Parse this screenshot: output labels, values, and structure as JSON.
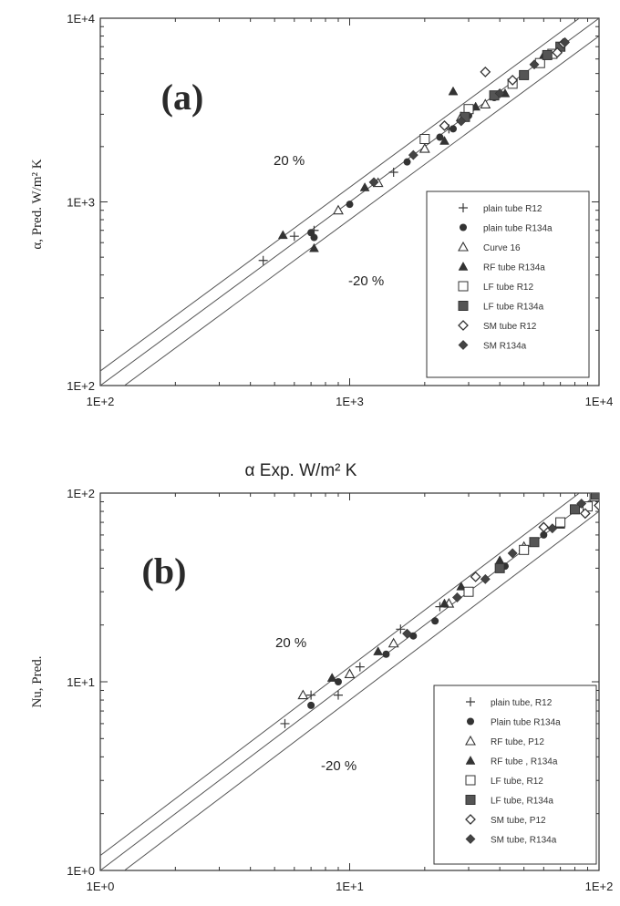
{
  "chart_data": [
    {
      "type": "scatter",
      "panel_label": "(a)",
      "ylabel": "α, Pred. W/m² K",
      "xlabel": "α Exp. W/m² K",
      "xscale": "log",
      "yscale": "log",
      "xlim": [
        100,
        10000
      ],
      "ylim": [
        100,
        10000
      ],
      "xticks": [
        "1E+2",
        "1E+3",
        "1E+4"
      ],
      "yticks": [
        "1E+2",
        "1E+3",
        "1E+4"
      ],
      "grid": false,
      "legend_position": "lower-right",
      "reference_lines": [
        {
          "label": "20 %",
          "factor": 1.2
        },
        {
          "label": "",
          "factor": 1.0
        },
        {
          "label": "-20 %",
          "factor": 0.8
        }
      ],
      "series": [
        {
          "name": "plain tube R12",
          "marker": "plus",
          "points": [
            [
              450,
              480
            ],
            [
              600,
              650
            ],
            [
              720,
              700
            ],
            [
              1500,
              1450
            ],
            [
              2500,
              2500
            ]
          ]
        },
        {
          "name": "plain tube R134a",
          "marker": "circle",
          "points": [
            [
              700,
              680
            ],
            [
              720,
              640
            ],
            [
              1000,
              970
            ],
            [
              1700,
              1650
            ],
            [
              2300,
              2250
            ],
            [
              2600,
              2500
            ],
            [
              3000,
              2950
            ],
            [
              3800,
              3700
            ]
          ]
        },
        {
          "name": "Curve 16",
          "marker": "triangle-open",
          "points": [
            [
              900,
              900
            ],
            [
              1300,
              1270
            ],
            [
              2000,
              1950
            ],
            [
              2800,
              2900
            ],
            [
              3500,
              3400
            ]
          ]
        },
        {
          "name": "RF tube R134a",
          "marker": "triangle",
          "points": [
            [
              540,
              660
            ],
            [
              720,
              560
            ],
            [
              1150,
              1200
            ],
            [
              2400,
              2150
            ],
            [
              2600,
              4000
            ],
            [
              3200,
              3300
            ],
            [
              4200,
              3900
            ],
            [
              6000,
              6300
            ]
          ]
        },
        {
          "name": "LF tube R12",
          "marker": "square-open",
          "points": [
            [
              2000,
              2200
            ],
            [
              3000,
              3200
            ],
            [
              4500,
              4400
            ],
            [
              5800,
              5700
            ],
            [
              6500,
              6400
            ]
          ]
        },
        {
          "name": "LF tube R134a",
          "marker": "square",
          "points": [
            [
              2900,
              2900
            ],
            [
              3800,
              3800
            ],
            [
              5000,
              4900
            ],
            [
              6200,
              6300
            ],
            [
              7000,
              7000
            ]
          ]
        },
        {
          "name": "SM tube R12",
          "marker": "diamond-open",
          "points": [
            [
              2400,
              2600
            ],
            [
              3500,
              5100
            ],
            [
              4500,
              4600
            ],
            [
              6800,
              6500
            ],
            [
              7200,
              7300
            ]
          ]
        },
        {
          "name": "SM R134a",
          "marker": "diamond",
          "points": [
            [
              1250,
              1280
            ],
            [
              1800,
              1800
            ],
            [
              2800,
              2750
            ],
            [
              4000,
              3900
            ],
            [
              5500,
              5600
            ],
            [
              7300,
              7400
            ]
          ]
        }
      ]
    },
    {
      "type": "scatter",
      "panel_label": "(b)",
      "ylabel": "Nu, Pred.",
      "xlabel": "",
      "xscale": "log",
      "yscale": "log",
      "xlim": [
        1,
        100
      ],
      "ylim": [
        1,
        100
      ],
      "xticks": [
        "1E+0",
        "1E+1",
        "1E+2"
      ],
      "yticks": [
        "1E+0",
        "1E+1",
        "1E+2"
      ],
      "grid": false,
      "legend_position": "lower-right",
      "reference_lines": [
        {
          "label": "20 %",
          "factor": 1.2
        },
        {
          "label": "",
          "factor": 1.0
        },
        {
          "label": "-20 %",
          "factor": 0.8
        }
      ],
      "series": [
        {
          "name": "plain tube, R12",
          "marker": "plus",
          "points": [
            [
              5.5,
              6
            ],
            [
              7,
              8.5
            ],
            [
              9,
              8.5
            ],
            [
              11,
              12
            ],
            [
              16,
              19
            ],
            [
              23,
              25
            ],
            [
              27,
              28
            ]
          ]
        },
        {
          "name": "Plain tube R134a",
          "marker": "circle",
          "points": [
            [
              7,
              7.5
            ],
            [
              9,
              10
            ],
            [
              14,
              14
            ],
            [
              18,
              17.5
            ],
            [
              22,
              21
            ],
            [
              30,
              30
            ],
            [
              42,
              41
            ],
            [
              60,
              60
            ]
          ]
        },
        {
          "name": "RF tube, P12",
          "marker": "triangle-open",
          "points": [
            [
              6.5,
              8.5
            ],
            [
              10,
              11
            ],
            [
              15,
              16
            ],
            [
              25,
              26
            ],
            [
              50,
              52
            ]
          ]
        },
        {
          "name": "RF tube , R134a",
          "marker": "triangle",
          "points": [
            [
              8.5,
              10.5
            ],
            [
              13,
              14.5
            ],
            [
              24,
              26
            ],
            [
              28,
              32
            ],
            [
              40,
              44
            ],
            [
              70,
              68
            ]
          ]
        },
        {
          "name": "LF tube, R12",
          "marker": "square-open",
          "points": [
            [
              30,
              30
            ],
            [
              50,
              50
            ],
            [
              70,
              70
            ],
            [
              90,
              85
            ],
            [
              96,
              96
            ]
          ]
        },
        {
          "name": "LF tube, R134a",
          "marker": "square",
          "points": [
            [
              40,
              40
            ],
            [
              55,
              55
            ],
            [
              80,
              82
            ],
            [
              97,
              98
            ]
          ]
        },
        {
          "name": "SM tube, P12",
          "marker": "diamond-open",
          "points": [
            [
              32,
              36
            ],
            [
              60,
              66
            ],
            [
              88,
              78
            ],
            [
              100,
              86
            ]
          ]
        },
        {
          "name": "SM tube, R134a",
          "marker": "diamond",
          "points": [
            [
              17,
              18
            ],
            [
              27,
              28
            ],
            [
              35,
              35
            ],
            [
              45,
              48
            ],
            [
              65,
              65
            ],
            [
              85,
              88
            ]
          ]
        }
      ]
    }
  ]
}
